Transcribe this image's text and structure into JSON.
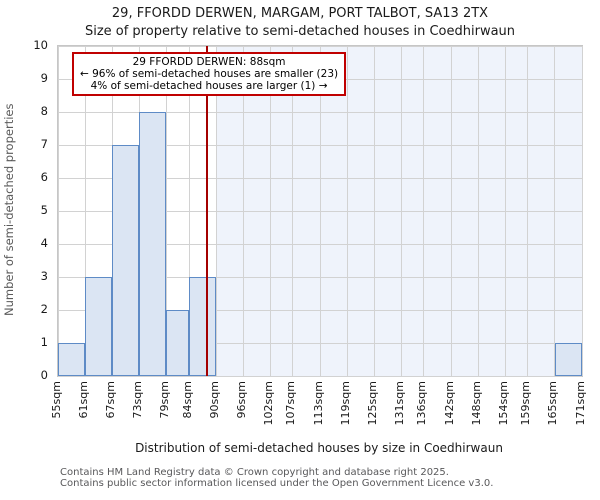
{
  "title": "29, FFORDD DERWEN, MARGAM, PORT TALBOT, SA13 2TX",
  "subtitle": "Size of property relative to semi-detached houses in Coedhirwaun",
  "annotation": {
    "line1": "29 FFORDD DERWEN: 88sqm",
    "line2": "← 96% of semi-detached houses are smaller (23)",
    "line3": "4% of semi-detached houses are larger (1) →"
  },
  "footer": {
    "line1": "Contains HM Land Registry data © Crown copyright and database right 2025.",
    "line2": "Contains public sector information licensed under the Open Government Licence v3.0."
  },
  "chart_data": {
    "type": "bar",
    "title": "29, FFORDD DERWEN, MARGAM, PORT TALBOT, SA13 2TX",
    "subtitle": "Size of property relative to semi-detached houses in Coedhirwaun",
    "xlabel": "Distribution of semi-detached houses by size in Coedhirwaun",
    "ylabel": "Number of semi-detached properties",
    "ylim": [
      0,
      10
    ],
    "yticks": [
      0,
      1,
      2,
      3,
      4,
      5,
      6,
      7,
      8,
      9,
      10
    ],
    "grid": true,
    "bin_edges_sqm": [
      55,
      61,
      67,
      73,
      79,
      84,
      90,
      96,
      102,
      107,
      113,
      119,
      125,
      131,
      136,
      142,
      148,
      154,
      159,
      165,
      171
    ],
    "xtick_labels": [
      "55sqm",
      "61sqm",
      "67sqm",
      "73sqm",
      "79sqm",
      "84sqm",
      "90sqm",
      "96sqm",
      "102sqm",
      "107sqm",
      "113sqm",
      "119sqm",
      "125sqm",
      "131sqm",
      "136sqm",
      "142sqm",
      "148sqm",
      "154sqm",
      "159sqm",
      "165sqm",
      "171sqm"
    ],
    "values": [
      1,
      3,
      7,
      8,
      2,
      3,
      0,
      0,
      0,
      0,
      0,
      0,
      0,
      0,
      0,
      0,
      0,
      0,
      0,
      1
    ],
    "marker_value_sqm": 88,
    "shade_from_sqm": 90,
    "smaller_count": 23,
    "larger_count": 1,
    "smaller_pct": 96,
    "larger_pct": 4,
    "colors": {
      "bar_fill": "#dbe5f3",
      "bar_edge": "#5e8bc6",
      "marker_line": "#a40000",
      "annotation_border": "#c00000",
      "shade_region": "#eff3fb",
      "gridline": "#d2d2d2"
    }
  }
}
